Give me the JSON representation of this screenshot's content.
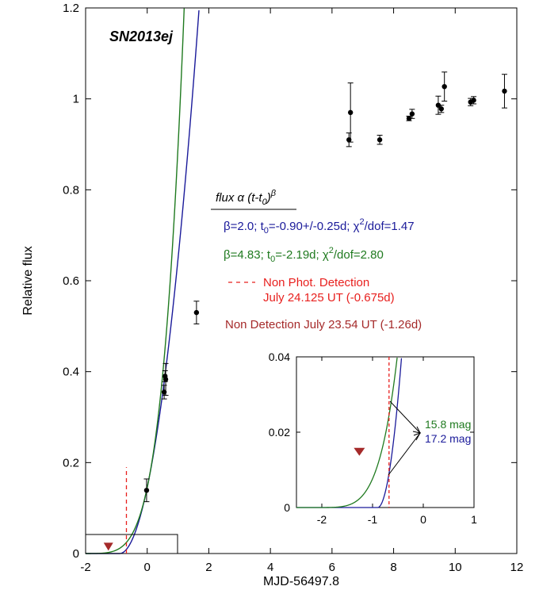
{
  "chart_data": {
    "type": "scatter",
    "title": "SN2013ej",
    "xlabel": "MJD-56497.8",
    "ylabel": "Relative flux",
    "xlim": [
      -2,
      12
    ],
    "ylim": [
      0,
      1.2
    ],
    "xticks": [
      -2,
      0,
      2,
      4,
      6,
      8,
      10,
      12
    ],
    "yticks": [
      0,
      0.2,
      0.4,
      0.6,
      0.8,
      1,
      1.2
    ],
    "xtick_labels": [
      "-2",
      "0",
      "2",
      "4",
      "6",
      "8",
      "10",
      "12"
    ],
    "ytick_labels": [
      "0",
      "0.2",
      "0.4",
      "0.6",
      "0.8",
      "1",
      "1.2"
    ],
    "points": [
      {
        "x": -0.02,
        "y": 0.139,
        "err": 0.025
      },
      {
        "x": 0.55,
        "y": 0.355,
        "err": 0.015
      },
      {
        "x": 0.58,
        "y": 0.39,
        "err": 0.012
      },
      {
        "x": 0.6,
        "y": 0.383,
        "err": 0.035
      },
      {
        "x": 1.6,
        "y": 0.53,
        "err": 0.025
      },
      {
        "x": 6.55,
        "y": 0.91,
        "err": 0.015
      },
      {
        "x": 6.6,
        "y": 0.97,
        "err": 0.065
      },
      {
        "x": 7.55,
        "y": 0.91,
        "err": 0.01
      },
      {
        "x": 8.5,
        "y": 0.957,
        "err": 0.005
      },
      {
        "x": 8.6,
        "y": 0.967,
        "err": 0.01
      },
      {
        "x": 9.45,
        "y": 0.986,
        "err": 0.02
      },
      {
        "x": 9.55,
        "y": 0.978,
        "err": 0.008
      },
      {
        "x": 9.65,
        "y": 1.027,
        "err": 0.032
      },
      {
        "x": 10.5,
        "y": 0.993,
        "err": 0.008
      },
      {
        "x": 10.6,
        "y": 0.997,
        "err": 0.008
      },
      {
        "x": 11.6,
        "y": 1.017,
        "err": 0.037
      }
    ],
    "fits": [
      {
        "name": "blue-fit",
        "t0": -0.9,
        "beta": 2.0,
        "color": "#1a1a9a"
      },
      {
        "name": "green-fit",
        "t0": -2.19,
        "beta": 4.83,
        "color": "#1f7a1f"
      }
    ],
    "non_detection": {
      "x": -1.26,
      "y": 0.015,
      "color": "#a52a2a"
    },
    "non_phot_detection": {
      "x": -0.675,
      "color": "#e8201e"
    },
    "annotations": {
      "formula_prefix": "flux α (t-t",
      "formula_sub": "0",
      "formula_close": ")",
      "formula_sup": "β",
      "fit1": {
        "a": "β=2.0; t",
        "sub": "0",
        "b": "=-0.90+/-0.25d; χ",
        "sup": "2",
        "c": "/dof=1.47"
      },
      "fit2": {
        "a": "β=4.83; t",
        "sub": "0",
        "b": "=-2.19d; χ",
        "sup": "2",
        "c": "/dof=2.80"
      },
      "non_phot_line1": "Non Phot. Detection",
      "non_phot_line2": "July 24.125 UT (-0.675d)",
      "non_detection_text": "Non Detection July 23.54 UT (-1.26d)"
    },
    "inset": {
      "xlim": [
        -2.5,
        1
      ],
      "ylim": [
        0,
        0.04
      ],
      "xtick_labels": [
        "-2",
        "-1",
        "0",
        "1"
      ],
      "ytick_labels": [
        "0",
        "0.02",
        "0.04"
      ],
      "mag_green": "15.8 mag",
      "mag_blue": "17.2 mag"
    }
  }
}
